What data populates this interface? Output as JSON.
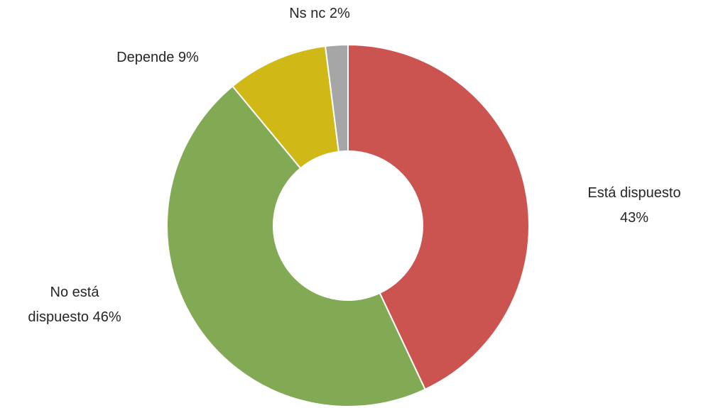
{
  "chart_data": {
    "type": "donut",
    "categories": [
      "Está dispuesto",
      "No está dispuesto",
      "Depende",
      "Ns nc"
    ],
    "values": [
      43,
      46,
      9,
      2
    ],
    "value_labels": [
      "43%",
      "46%",
      "9%",
      "2%"
    ],
    "colors": [
      "#cb5451",
      "#82aa55",
      "#d0b816",
      "#a6a6a6"
    ]
  }
}
